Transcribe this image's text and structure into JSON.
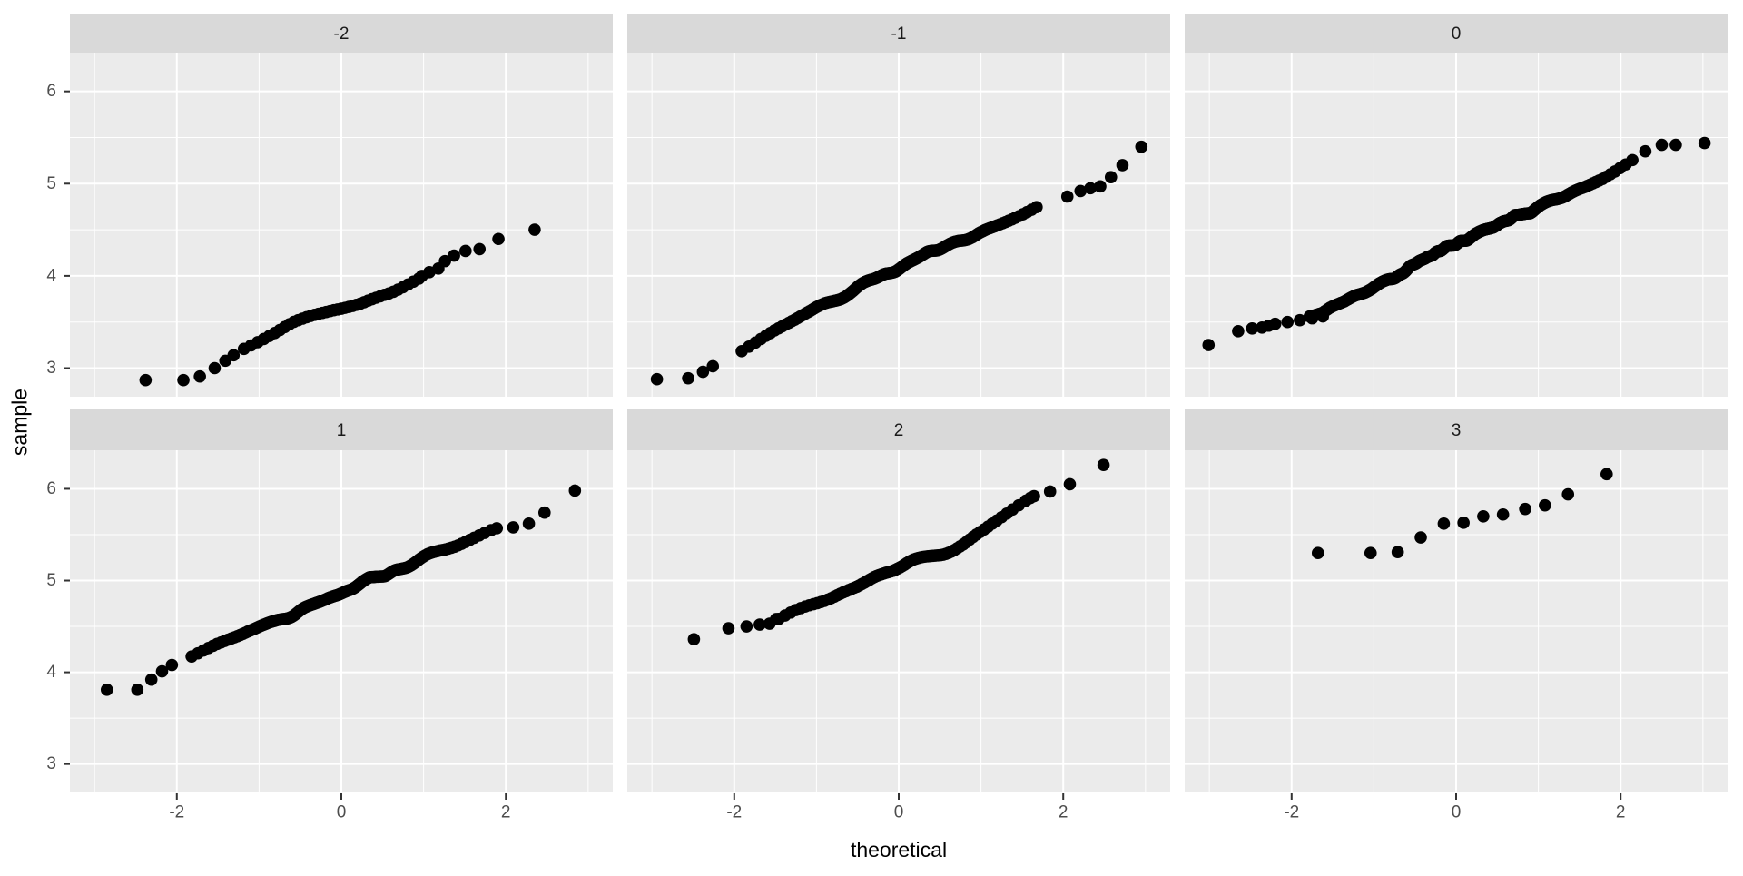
{
  "chart_data": {
    "type": "scatter",
    "subtype": "qq-plot-facet-grid",
    "title": "",
    "facet_variable_values": [
      "-2",
      "-1",
      "0",
      "1",
      "2",
      "3"
    ],
    "grid": "on",
    "legend": "none",
    "x": {
      "label": "theoretical",
      "range": [
        -3.3,
        3.3
      ],
      "ticks": [
        -2,
        0,
        2
      ],
      "tick_labels": [
        "-2",
        "0",
        "2"
      ],
      "minor_ticks": [
        -3,
        -1,
        1,
        3
      ]
    },
    "y": {
      "label": "sample",
      "range": [
        2.69,
        6.42
      ],
      "ticks": [
        3,
        4,
        5,
        6
      ],
      "tick_labels": [
        "3",
        "4",
        "5",
        "6"
      ],
      "minor_ticks": [
        3.5,
        4.5,
        5.5
      ]
    },
    "facets": [
      {
        "label": "-2",
        "n": 55,
        "seed": 11,
        "noise": 0.05,
        "observed_range_y": [
          2.87,
          4.5
        ],
        "observed_range_x": [
          -2.38,
          2.35
        ],
        "controls": [
          [
            -2.38,
            2.87
          ],
          [
            -1.31,
            3.14
          ],
          [
            -0.6,
            3.45
          ],
          [
            0,
            3.62
          ],
          [
            0.6,
            3.8
          ],
          [
            0.98,
            3.98
          ],
          [
            2.35,
            4.5
          ]
        ],
        "points_low": [
          [
            -2.38,
            2.87
          ],
          [
            -1.92,
            2.87
          ],
          [
            -1.72,
            2.91
          ],
          [
            -1.54,
            3.0
          ],
          [
            -1.41,
            3.08
          ],
          [
            -1.31,
            3.14
          ]
        ],
        "points_high": [
          [
            0.98,
            4.0
          ],
          [
            1.07,
            4.04
          ],
          [
            1.18,
            4.08
          ],
          [
            1.26,
            4.16
          ],
          [
            1.37,
            4.22
          ],
          [
            1.51,
            4.27
          ],
          [
            1.68,
            4.29
          ],
          [
            1.91,
            4.4
          ],
          [
            2.35,
            4.5
          ]
        ]
      },
      {
        "label": "-1",
        "n": 160,
        "seed": 22,
        "noise": 0.04,
        "observed_range_y": [
          2.88,
          5.4
        ],
        "observed_range_x": [
          -2.94,
          2.95
        ],
        "controls": [
          [
            -2.94,
            2.88
          ],
          [
            -2.26,
            3.02
          ],
          [
            -1.8,
            3.25
          ],
          [
            -1.2,
            3.55
          ],
          [
            -0.6,
            3.82
          ],
          [
            0,
            4.08
          ],
          [
            0.6,
            4.33
          ],
          [
            1.2,
            4.57
          ],
          [
            1.8,
            4.8
          ],
          [
            2.05,
            4.88
          ],
          [
            2.95,
            5.4
          ]
        ],
        "points_low": [
          [
            -2.94,
            2.88
          ],
          [
            -2.56,
            2.89
          ],
          [
            -2.38,
            2.96
          ],
          [
            -2.26,
            3.02
          ]
        ],
        "points_high": [
          [
            2.05,
            4.86
          ],
          [
            2.21,
            4.92
          ],
          [
            2.33,
            4.95
          ],
          [
            2.45,
            4.97
          ],
          [
            2.58,
            5.07
          ],
          [
            2.72,
            5.2
          ],
          [
            2.95,
            5.4
          ]
        ]
      },
      {
        "label": "0",
        "n": 280,
        "seed": 33,
        "noise": 0.035,
        "observed_range_y": [
          3.25,
          5.44
        ],
        "observed_range_x": [
          -3.01,
          3.02
        ],
        "controls": [
          [
            -3.01,
            3.25
          ],
          [
            -2.2,
            3.48
          ],
          [
            -1.62,
            3.56
          ],
          [
            -1.2,
            3.78
          ],
          [
            -0.6,
            4.08
          ],
          [
            0,
            4.35
          ],
          [
            0.6,
            4.6
          ],
          [
            1.2,
            4.83
          ],
          [
            1.8,
            5.08
          ],
          [
            2.3,
            5.35
          ],
          [
            3.02,
            5.44
          ]
        ],
        "points_low": [
          [
            -3.01,
            3.25
          ],
          [
            -2.65,
            3.4
          ],
          [
            -2.48,
            3.43
          ],
          [
            -2.36,
            3.44
          ],
          [
            -2.28,
            3.46
          ],
          [
            -2.2,
            3.48
          ],
          [
            -2.05,
            3.5
          ],
          [
            -1.9,
            3.52
          ],
          [
            -1.75,
            3.54
          ],
          [
            -1.62,
            3.56
          ]
        ],
        "points_high": [
          [
            2.3,
            5.35
          ],
          [
            2.5,
            5.42
          ],
          [
            2.67,
            5.42
          ],
          [
            3.02,
            5.44
          ]
        ]
      },
      {
        "label": "1",
        "n": 160,
        "seed": 44,
        "noise": 0.04,
        "observed_range_y": [
          3.81,
          5.98
        ],
        "observed_range_x": [
          -2.85,
          2.84
        ],
        "controls": [
          [
            -2.85,
            3.81
          ],
          [
            -2.06,
            4.08
          ],
          [
            -1.2,
            4.4
          ],
          [
            -0.6,
            4.64
          ],
          [
            0,
            4.87
          ],
          [
            0.6,
            5.1
          ],
          [
            1.2,
            5.33
          ],
          [
            1.89,
            5.57
          ],
          [
            2.84,
            5.98
          ]
        ],
        "points_low": [
          [
            -2.85,
            3.81
          ],
          [
            -2.48,
            3.81
          ],
          [
            -2.31,
            3.92
          ],
          [
            -2.18,
            4.01
          ],
          [
            -2.06,
            4.08
          ]
        ],
        "points_high": [
          [
            1.89,
            5.57
          ],
          [
            2.09,
            5.58
          ],
          [
            2.28,
            5.62
          ],
          [
            2.47,
            5.74
          ],
          [
            2.84,
            5.98
          ]
        ]
      },
      {
        "label": "2",
        "n": 90,
        "seed": 55,
        "noise": 0.045,
        "observed_range_y": [
          4.36,
          6.26
        ],
        "observed_range_x": [
          -2.49,
          2.49
        ],
        "controls": [
          [
            -2.49,
            4.36
          ],
          [
            -1.49,
            4.58
          ],
          [
            -0.8,
            4.82
          ],
          [
            0,
            5.11
          ],
          [
            0.8,
            5.42
          ],
          [
            1.6,
            5.9
          ],
          [
            2.49,
            6.26
          ]
        ],
        "points_low": [
          [
            -2.49,
            4.36
          ],
          [
            -2.07,
            4.48
          ],
          [
            -1.85,
            4.5
          ],
          [
            -1.69,
            4.52
          ],
          [
            -1.57,
            4.53
          ],
          [
            -1.49,
            4.58
          ]
        ],
        "points_high": [
          [
            1.6,
            5.9
          ],
          [
            1.84,
            5.97
          ],
          [
            2.08,
            6.05
          ],
          [
            2.49,
            6.26
          ]
        ]
      },
      {
        "label": "3",
        "observed_range_y": [
          5.3,
          6.16
        ],
        "observed_range_x": [
          -1.68,
          1.83
        ],
        "points": [
          [
            -1.68,
            5.3
          ],
          [
            -1.04,
            5.3
          ],
          [
            -0.71,
            5.31
          ],
          [
            -0.43,
            5.47
          ],
          [
            -0.15,
            5.62
          ],
          [
            0.09,
            5.63
          ],
          [
            0.33,
            5.7
          ],
          [
            0.57,
            5.72
          ],
          [
            0.84,
            5.78
          ],
          [
            1.08,
            5.82
          ],
          [
            1.36,
            5.94
          ],
          [
            1.83,
            6.16
          ]
        ]
      }
    ]
  },
  "theme": {
    "background": "#FFFFFF",
    "panel_bg": "#EBEBEB",
    "strip_bg": "#D9D9D9",
    "grid_color": "#FFFFFF",
    "point_color": "#000000",
    "tick_text_color": "#4D4D4D",
    "strip_text_color": "#1A1A1A",
    "axis_title_color": "#000000",
    "tick_mark_color": "#333333"
  }
}
